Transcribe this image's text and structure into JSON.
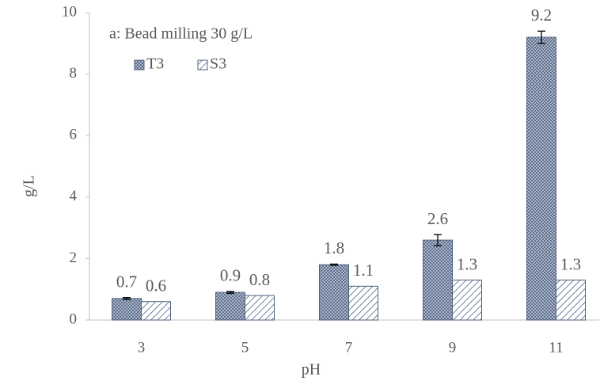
{
  "chart_data": {
    "type": "bar",
    "annotation": "a: Bead milling 30 g/L",
    "x_label": "pH",
    "y_label": "g/L",
    "categories": [
      "3",
      "5",
      "7",
      "9",
      "11"
    ],
    "series": [
      {
        "name": "T3",
        "color": "#4f6282",
        "pattern": "crosshatch",
        "values": [
          0.7,
          0.9,
          1.8,
          2.6,
          9.2
        ],
        "errors": [
          0.03,
          0.03,
          0.02,
          0.18,
          0.2
        ]
      },
      {
        "name": "S3",
        "color": "#4f6282",
        "pattern": "diagonal",
        "values": [
          0.6,
          0.8,
          1.1,
          1.3,
          1.3
        ]
      }
    ],
    "ylim": [
      0,
      10
    ],
    "yticks": [
      0,
      2,
      4,
      6,
      8,
      10
    ],
    "grid": false
  }
}
